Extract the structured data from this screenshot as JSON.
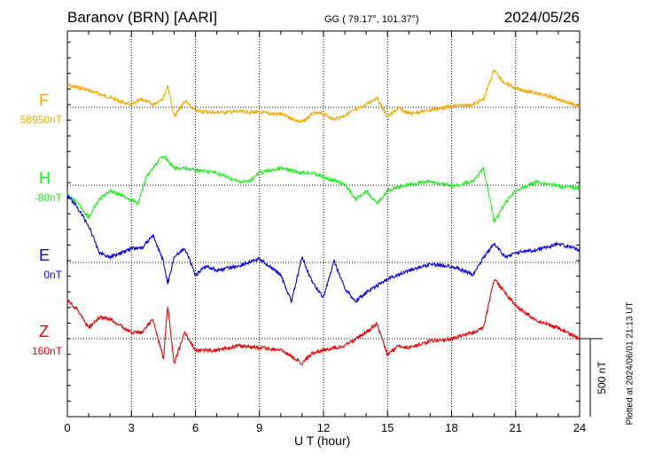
{
  "chart_data": {
    "type": "line",
    "title": "Baranov (BRN)  [AARI]",
    "coords": "GG ( 79.17°, 101.37°)",
    "date": "2024/05/26",
    "xlabel": "U T (hour)",
    "xlim": [
      0,
      24
    ],
    "xticks": [
      "0",
      "3",
      "6",
      "9",
      "12",
      "15",
      "18",
      "21",
      "24"
    ],
    "scale_label": "500 nT",
    "scale_nT": 500,
    "plotted_note": "Plotted at 2024/06/01 21:13 UT",
    "grid": true,
    "series": [
      {
        "name": "F",
        "baseline_label": "58950nT",
        "color": "#f5a800",
        "points": [
          [
            0,
            142
          ],
          [
            0.5,
            125
          ],
          [
            1,
            108
          ],
          [
            1.5,
            85
          ],
          [
            2,
            62
          ],
          [
            2.5,
            34
          ],
          [
            3,
            17
          ],
          [
            3.5,
            51
          ],
          [
            4,
            17
          ],
          [
            4.5,
            62
          ],
          [
            4.7,
            142
          ],
          [
            5,
            -62
          ],
          [
            5.5,
            40
          ],
          [
            6,
            -23
          ],
          [
            7,
            -34
          ],
          [
            8,
            -28
          ],
          [
            9,
            -34
          ],
          [
            10,
            -45
          ],
          [
            11,
            -97
          ],
          [
            11.5,
            -40
          ],
          [
            12,
            -40
          ],
          [
            12.5,
            -80
          ],
          [
            13,
            -51
          ],
          [
            14,
            17
          ],
          [
            14.5,
            62
          ],
          [
            15,
            -62
          ],
          [
            15.5,
            -6
          ],
          [
            16,
            -40
          ],
          [
            17,
            -17
          ],
          [
            18,
            6
          ],
          [
            19,
            17
          ],
          [
            19.5,
            51
          ],
          [
            20,
            244
          ],
          [
            20.3,
            176
          ],
          [
            21,
            119
          ],
          [
            22,
            91
          ],
          [
            23,
            51
          ],
          [
            24,
            6
          ]
        ]
      },
      {
        "name": "H",
        "baseline_label": "-80nT",
        "color": "#22ee22",
        "points": [
          [
            0,
            -62
          ],
          [
            0.5,
            -119
          ],
          [
            1,
            -204
          ],
          [
            1.5,
            -91
          ],
          [
            2,
            -34
          ],
          [
            3,
            -91
          ],
          [
            3.3,
            -119
          ],
          [
            3.7,
            51
          ],
          [
            4,
            108
          ],
          [
            4.5,
            193
          ],
          [
            5,
            108
          ],
          [
            5.5,
            108
          ],
          [
            6,
            97
          ],
          [
            7,
            80
          ],
          [
            8,
            23
          ],
          [
            8.5,
            23
          ],
          [
            9,
            80
          ],
          [
            10,
            108
          ],
          [
            11,
            80
          ],
          [
            11.5,
            80
          ],
          [
            12,
            51
          ],
          [
            13,
            6
          ],
          [
            13.5,
            -91
          ],
          [
            14,
            -34
          ],
          [
            14.5,
            -119
          ],
          [
            15,
            -34
          ],
          [
            16,
            6
          ],
          [
            17,
            23
          ],
          [
            18,
            -6
          ],
          [
            19,
            23
          ],
          [
            19.5,
            108
          ],
          [
            20,
            -233
          ],
          [
            20.5,
            -119
          ],
          [
            21,
            -34
          ],
          [
            22,
            23
          ],
          [
            23,
            -6
          ],
          [
            24,
            -17
          ]
        ]
      },
      {
        "name": "E",
        "baseline_label": "0nT",
        "color": "#0000ee",
        "points": [
          [
            0,
            432
          ],
          [
            0.5,
            346
          ],
          [
            1,
            233
          ],
          [
            1.5,
            62
          ],
          [
            2,
            34
          ],
          [
            3,
            91
          ],
          [
            3.5,
            91
          ],
          [
            4,
            176
          ],
          [
            4.5,
            6
          ],
          [
            4.7,
            -136
          ],
          [
            5,
            34
          ],
          [
            5.5,
            91
          ],
          [
            6,
            -80
          ],
          [
            6.5,
            -23
          ],
          [
            7,
            -51
          ],
          [
            8,
            -23
          ],
          [
            9,
            23
          ],
          [
            10,
            -80
          ],
          [
            10.5,
            -250
          ],
          [
            11,
            34
          ],
          [
            11.5,
            -136
          ],
          [
            12,
            -222
          ],
          [
            12.5,
            6
          ],
          [
            13,
            -165
          ],
          [
            13.5,
            -250
          ],
          [
            14,
            -193
          ],
          [
            15,
            -108
          ],
          [
            16,
            -51
          ],
          [
            17,
            -11
          ],
          [
            18,
            -23
          ],
          [
            19,
            -80
          ],
          [
            19.5,
            34
          ],
          [
            20,
            119
          ],
          [
            20.5,
            34
          ],
          [
            21,
            62
          ],
          [
            22,
            80
          ],
          [
            23,
            119
          ],
          [
            24,
            80
          ]
        ]
      },
      {
        "name": "Z",
        "baseline_label": "160nT",
        "color": "#ee0000",
        "points": [
          [
            0,
            250
          ],
          [
            0.5,
            182
          ],
          [
            1,
            68
          ],
          [
            1.5,
            136
          ],
          [
            2,
            125
          ],
          [
            3,
            40
          ],
          [
            3.5,
            40
          ],
          [
            4,
            125
          ],
          [
            4.5,
            -131
          ],
          [
            4.7,
            210
          ],
          [
            5,
            -159
          ],
          [
            5.5,
            40
          ],
          [
            6,
            -74
          ],
          [
            7,
            -74
          ],
          [
            8,
            -45
          ],
          [
            9,
            -57
          ],
          [
            10,
            -74
          ],
          [
            11,
            -159
          ],
          [
            11.5,
            -91
          ],
          [
            12,
            -74
          ],
          [
            13,
            -45
          ],
          [
            14,
            40
          ],
          [
            14.5,
            97
          ],
          [
            15,
            -102
          ],
          [
            15.5,
            -45
          ],
          [
            16,
            -57
          ],
          [
            17,
            -17
          ],
          [
            18,
            0
          ],
          [
            19,
            40
          ],
          [
            19.5,
            68
          ],
          [
            20,
            381
          ],
          [
            21,
            210
          ],
          [
            22,
            114
          ],
          [
            23,
            68
          ],
          [
            24,
            0
          ]
        ]
      }
    ]
  }
}
